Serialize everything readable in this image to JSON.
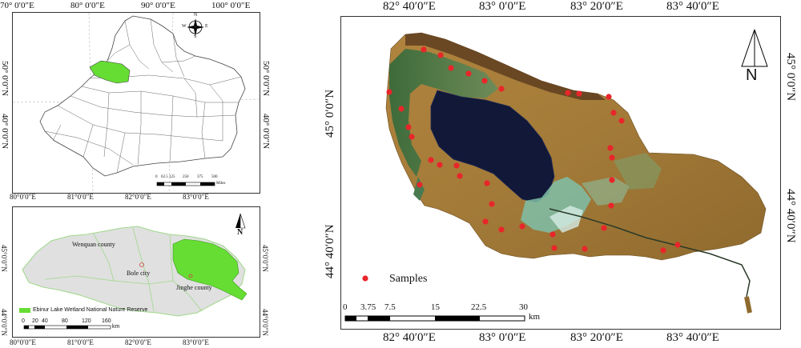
{
  "map_top_left": {
    "top_labels": [
      "70° 0′0″E",
      "80° 0′0″E",
      "90° 0′0″E",
      "100° 0′0″E"
    ],
    "left_labels": [
      "50° 0′0″N",
      "40° 0′0″N"
    ],
    "right_labels": [
      "50° 0′0″N",
      "40° 0′0″N"
    ],
    "scale_ticks": [
      "0",
      "62.5",
      "125",
      "250",
      "375",
      "500"
    ],
    "scale_unit": "Miles",
    "compass_letters": [
      "N",
      "E",
      "S",
      "W"
    ]
  },
  "map_bottom_left": {
    "top_labels": [
      "80°0′0″E",
      "81°0′0″E",
      "82°0′0″E",
      "83°0′0″E"
    ],
    "bottom_labels": [
      "80°0′0″E",
      "81°0′0″E",
      "82°0′0″E",
      "83°0′0″E"
    ],
    "left_labels": [
      "45°0′0″N",
      "44°0′0″N"
    ],
    "right_labels": [
      "45°0′0″N",
      "44°0′0″N"
    ],
    "places": {
      "wenquan": "Wenquan county",
      "bole": "Bole city",
      "jinghe": "Jinghe county"
    },
    "legend_label": "Ebinur Lake Wetland National Nature Reserve",
    "scale_ticks": [
      "0",
      "20",
      "40",
      "80",
      "120",
      "160"
    ],
    "scale_unit": "km",
    "north": "N",
    "colors": {
      "reserve": "#66dd33",
      "region": "#e0e0e0"
    }
  },
  "map_right": {
    "top_labels": [
      "82° 40′0″E",
      "83° 0′0″E",
      "83° 20′0″E",
      "83° 40′0″E"
    ],
    "bottom_labels": [
      "82° 40′0″E",
      "83° 0′0″E",
      "83° 20′0″E",
      "83° 40′0″E"
    ],
    "left_labels": [
      "45° 0′0″N",
      "44° 40′0″N"
    ],
    "right_labels": [
      "45° 0′0″N",
      "44° 40′0″N"
    ],
    "legend_label": "Samples",
    "scale_ticks": [
      "0",
      "3.75",
      "7.5",
      "15",
      "22.5",
      "30"
    ],
    "scale_unit": "km",
    "north": "N",
    "colors": {
      "samples": "#e8262a",
      "lake": "#111838"
    }
  }
}
